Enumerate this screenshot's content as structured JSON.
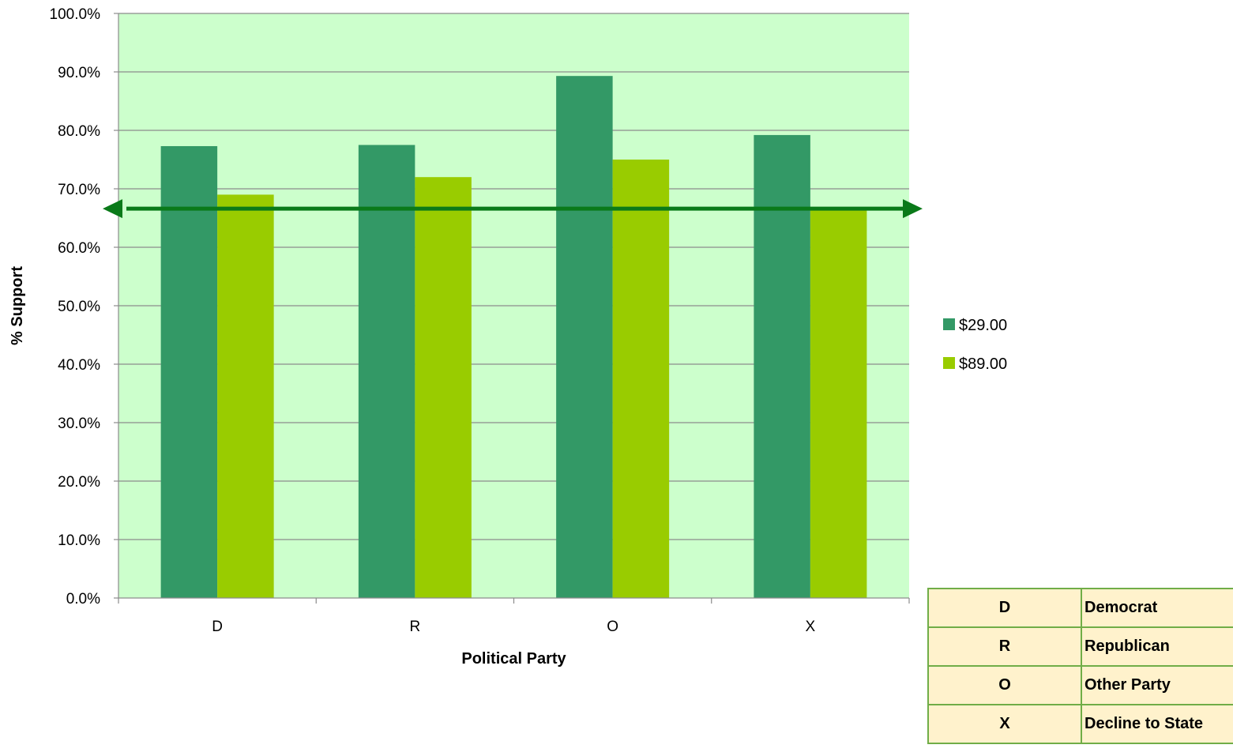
{
  "chart_data": {
    "type": "bar",
    "title": "",
    "xlabel": "Political Party",
    "ylabel": "% Support",
    "ylim": [
      0,
      100
    ],
    "y_tick_format": "percent_1dp",
    "y_ticks": [
      "0.0%",
      "10.0%",
      "20.0%",
      "30.0%",
      "40.0%",
      "50.0%",
      "60.0%",
      "70.0%",
      "80.0%",
      "90.0%",
      "100.0%"
    ],
    "categories": [
      "D",
      "R",
      "O",
      "X"
    ],
    "series": [
      {
        "name": "$29.00",
        "values": [
          77.3,
          77.5,
          89.3,
          79.2
        ],
        "color": "#339966"
      },
      {
        "name": "$89.00",
        "values": [
          69.0,
          72.0,
          75.0,
          66.5
        ],
        "color": "#99cc00"
      }
    ],
    "reference_line": {
      "value": 66.6,
      "color": "#0a7a19",
      "style": "double-arrow"
    },
    "plot_background": "#ccffcc",
    "grid": true,
    "legend": "right"
  },
  "party_legend": {
    "rows": [
      {
        "code": "D",
        "name": "Democrat"
      },
      {
        "code": "R",
        "name": "Republican"
      },
      {
        "code": "O",
        "name": "Other Party"
      },
      {
        "code": "X",
        "name": "Decline to State"
      }
    ]
  }
}
